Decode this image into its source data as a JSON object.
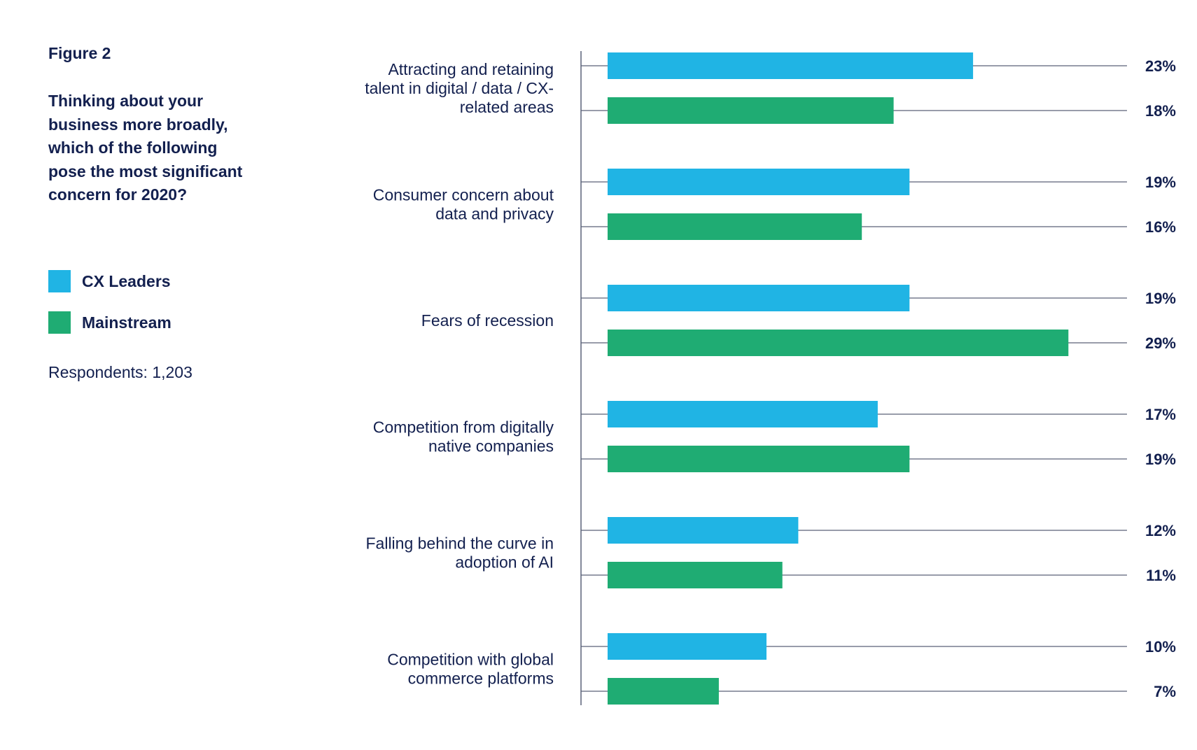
{
  "figure_label": "Figure 2",
  "question": "Thinking about your business more broadly, which of the following pose the most significant concern for 2020?",
  "respondents": "Respondents: 1,203",
  "colors": {
    "cx_leaders": "#20b4e4",
    "mainstream": "#1fac73",
    "text": "#13204f",
    "axis": "#5a6278"
  },
  "legend": [
    {
      "label": "CX Leaders",
      "color": "#20b4e4"
    },
    {
      "label": "Mainstream",
      "color": "#1fac73"
    }
  ],
  "chart_data": {
    "type": "bar",
    "orientation": "horizontal",
    "title": "",
    "xlabel": "",
    "ylabel": "",
    "xlim": [
      0,
      32
    ],
    "grid": false,
    "legend_position": "left",
    "categories": [
      "Attracting and retaining talent in digital / data / CX-related areas",
      "Consumer concern about data and privacy",
      "Fears of recession",
      "Competition from digitally native companies",
      "Falling behind the curve in adoption of AI",
      "Competition with global commerce platforms"
    ],
    "category_lines": [
      [
        "Attracting and retaining",
        "talent in digital / data / CX-",
        "related areas"
      ],
      [
        "Consumer concern about",
        "data and privacy"
      ],
      [
        "Fears of recession"
      ],
      [
        "Competition from digitally",
        "native companies"
      ],
      [
        "Falling behind the curve in",
        "adoption of AI"
      ],
      [
        "Competition with global",
        "commerce platforms"
      ]
    ],
    "series": [
      {
        "name": "CX Leaders",
        "color": "#20b4e4",
        "values": [
          23,
          19,
          19,
          17,
          12,
          10
        ],
        "labels": [
          "23%",
          "19%",
          "19%",
          "17%",
          "12%",
          "10%"
        ]
      },
      {
        "name": "Mainstream",
        "color": "#1fac73",
        "values": [
          18,
          16,
          29,
          19,
          11,
          7
        ],
        "labels": [
          "18%",
          "16%",
          "29%",
          "19%",
          "11%",
          "7%"
        ]
      }
    ]
  }
}
